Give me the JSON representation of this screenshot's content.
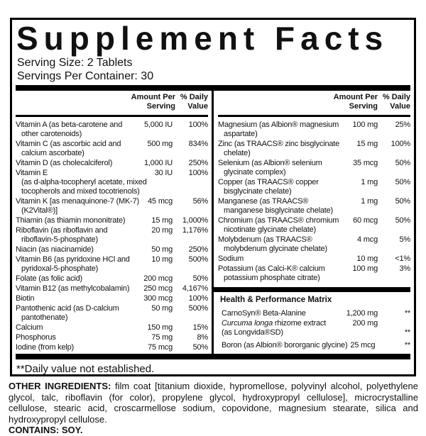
{
  "label": {
    "title": "Supplement Facts",
    "serving_size": "Serving Size: 2 Tablets",
    "servings_per_container": "Servings Per Container: 30",
    "col_headers": {
      "amount": "Amount Per\nServing",
      "dv": "% Daily\nValue"
    },
    "table": {
      "left": {
        "rows": [
          {
            "name": "Vitamin A (as beta-carotene and\nother carotenoids)",
            "amount": "5,000 IU",
            "dv": "100%"
          },
          {
            "name": "Vitamin C (as ascorbic acid and\ncalcium ascorbate)",
            "amount": "500 mg",
            "dv": "834%"
          },
          {
            "name": "Vitamin D (as cholecalciferol)",
            "amount": "1,000 IU",
            "dv": "250%"
          },
          {
            "name": "Vitamin E\n(as d-alpha-tocopheryl acetate, mixed\ntocopherols and mixed tocotrienols)",
            "amount": "30 IU",
            "dv": "100%"
          },
          {
            "name": "Vitamin K [as menaquinone-7 (MK-7)\n(K2Vital®)]",
            "amount": "45 mcg",
            "dv": "56%"
          },
          {
            "name": "Thiamin (as thiamin mononitrate)",
            "amount": "15 mg",
            "dv": "1,000%"
          },
          {
            "name": "Riboflavin (as riboflavin and\nriboflavin-5-phosphate)",
            "amount": "20 mg",
            "dv": "1,176%"
          },
          {
            "name": "Niacin (as niacinamide)",
            "amount": "50 mg",
            "dv": "250%"
          },
          {
            "name": "Vitamin B6 (as pyridoxine HCl and\npyridoxal-5-phosphate)",
            "amount": "10 mg",
            "dv": "500%"
          },
          {
            "name": "Folate (as folic acid)",
            "amount": "200 mcg",
            "dv": "50%"
          },
          {
            "name": "Vitamin B12 (as methylcobalamin)",
            "amount": "250 mcg",
            "dv": "4,167%"
          },
          {
            "name": "Biotin",
            "amount": "300 mcg",
            "dv": "100%"
          },
          {
            "name": "Pantothenic acid (as D-calcium\npantothenate)",
            "amount": "50 mg",
            "dv": "500%"
          },
          {
            "name": "Calcium",
            "amount": "150 mg",
            "dv": "15%"
          },
          {
            "name": "Phosphorus",
            "amount": "75 mg",
            "dv": "8%"
          },
          {
            "name": "Iodine (from kelp)",
            "amount": "75 mcg",
            "dv": "50%"
          }
        ]
      },
      "right": {
        "rows": [
          {
            "name": "Magnesium (as Albion® magnesium\naspartate)",
            "amount": "100 mg",
            "dv": "25%"
          },
          {
            "name": "Zinc (as TRAACS® zinc bisglycinate\nchelate)",
            "amount": "15 mg",
            "dv": "100%"
          },
          {
            "name": "Selenium (as Albion® selenium\nglycinate complex)",
            "amount": "35 mcg",
            "dv": "50%"
          },
          {
            "name": "Copper (as TRAACS® copper\nbisglycinate chelate)",
            "amount": "1 mg",
            "dv": "50%"
          },
          {
            "name": "Manganese (as TRAACS®\nmanganese bisglycinate chelate)",
            "amount": "1 mg",
            "dv": "50%"
          },
          {
            "name": "Chromium (as TRAACS® chromium\nnicotinate glycinate chelate)",
            "amount": "60 mcg",
            "dv": "50%"
          },
          {
            "name": "Molybdenum (as TRAACS®\nmolybdenum glycinate chelate)",
            "amount": "4 mcg",
            "dv": "5%"
          },
          {
            "name": "Sodium",
            "amount": "10 mg",
            "dv": "<1%"
          },
          {
            "name": "Potassium (as Calci-K® calcium\npotassium phosphate citrate)",
            "amount": "100 mg",
            "dv": "3%"
          }
        ]
      }
    },
    "matrix": {
      "title": "Health & Performance Matrix",
      "carnosyn": {
        "name": "CarnoSyn® Beta-Alanine",
        "amount": "1,200 mg",
        "dv": "**"
      },
      "curcuma": {
        "name_italic": "Curcuma longa",
        "name_rest": " rhizome extract\n(as Longvida®SD)",
        "amount": "200 mg",
        "dv": "**"
      },
      "boron": {
        "name": "Boron (as Albion® bororganic glycine)",
        "amount": "25 mcg",
        "dv": "**"
      }
    },
    "footnote": "**Daily value not established."
  },
  "bottom": {
    "other_label": "OTHER INGREDIENTS:",
    "other_text": " film coat [titanium dioxide, hypromellose, polyvinyl alcohol, polyethylene glycol, talc, riboflavin (for color), propylene glycol, hydroxypropyl cellulose], microcrystalline cellulose, stearic acid, croscarmellose sodium, copovidone, magnesium stearate, silica and hydroxypropyl cellulose.",
    "contains": "CONTAINS: SOY."
  },
  "colors": {
    "ink": "#111111",
    "rule": "#000000",
    "background": "#ffffff"
  }
}
